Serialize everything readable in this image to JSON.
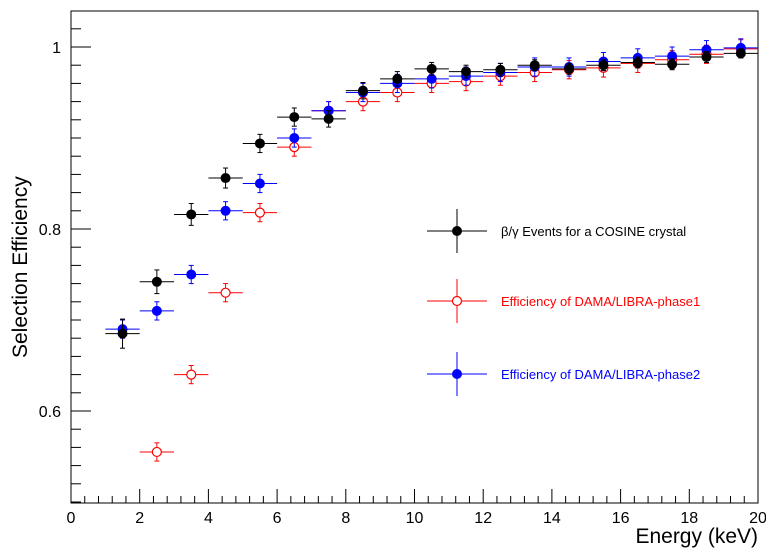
{
  "chart_data": {
    "type": "scatter",
    "title": "",
    "xlabel": "Energy (keV)",
    "ylabel": "Selection Efficiency",
    "xlim": [
      0,
      20
    ],
    "ylim": [
      0.5,
      1.04
    ],
    "x_ticks": [
      "0",
      "2",
      "4",
      "6",
      "8",
      "10",
      "12",
      "14",
      "16",
      "18",
      "20"
    ],
    "y_ticks": [
      "0.6",
      "0.8",
      "1"
    ],
    "grid": false,
    "legend_position": "right",
    "series": [
      {
        "name": "β/γ Events for a COSINE crystal",
        "color": "#000000",
        "marker": "filled-circle",
        "x": [
          1.5,
          2.5,
          3.5,
          4.5,
          5.5,
          6.5,
          7.5,
          8.5,
          9.5,
          10.5,
          11.5,
          12.5,
          13.5,
          14.5,
          15.5,
          16.5,
          17.5,
          18.5,
          19.5
        ],
        "y": [
          0.685,
          0.742,
          0.816,
          0.856,
          0.894,
          0.923,
          0.921,
          0.952,
          0.965,
          0.976,
          0.973,
          0.975,
          0.98,
          0.976,
          0.98,
          0.983,
          0.981,
          0.989,
          0.993
        ],
        "xerr": 0.5,
        "yerr": [
          0.016,
          0.013,
          0.012,
          0.011,
          0.01,
          0.01,
          0.009,
          0.009,
          0.008,
          0.007,
          0.007,
          0.007,
          0.006,
          0.006,
          0.006,
          0.006,
          0.006,
          0.006,
          0.005
        ]
      },
      {
        "name": "Efficiency of DAMA/LIBRA-phase1",
        "color": "#ff0000",
        "marker": "open-circle",
        "x": [
          2.5,
          3.5,
          4.5,
          5.5,
          6.5,
          7.5,
          8.5,
          9.5,
          10.5,
          11.5,
          12.5,
          13.5,
          14.5,
          15.5,
          16.5,
          17.5,
          18.5,
          19.5
        ],
        "y": [
          0.555,
          0.64,
          0.73,
          0.818,
          0.89,
          0.93,
          0.94,
          0.95,
          0.96,
          0.962,
          0.968,
          0.972,
          0.975,
          0.977,
          0.982,
          0.986,
          0.992,
          0.998
        ],
        "xerr": 0.5,
        "yerr": [
          0.01,
          0.01,
          0.01,
          0.01,
          0.01,
          0.01,
          0.01,
          0.01,
          0.01,
          0.01,
          0.01,
          0.01,
          0.01,
          0.01,
          0.01,
          0.01,
          0.01,
          0.01
        ]
      },
      {
        "name": "Efficiency of DAMA/LIBRA-phase2",
        "color": "#0000ff",
        "marker": "filled-circle",
        "x": [
          1.5,
          2.5,
          3.5,
          4.5,
          5.5,
          6.5,
          7.5,
          8.5,
          9.5,
          10.5,
          11.5,
          12.5,
          13.5,
          14.5,
          15.5,
          16.5,
          17.5,
          18.5,
          19.5
        ],
        "y": [
          0.69,
          0.71,
          0.75,
          0.82,
          0.85,
          0.9,
          0.93,
          0.95,
          0.96,
          0.965,
          0.968,
          0.972,
          0.978,
          0.978,
          0.984,
          0.988,
          0.99,
          0.997,
          0.999
        ],
        "xerr": 0.5,
        "yerr": [
          0.01,
          0.01,
          0.01,
          0.01,
          0.01,
          0.01,
          0.01,
          0.01,
          0.01,
          0.01,
          0.01,
          0.01,
          0.01,
          0.01,
          0.01,
          0.01,
          0.01,
          0.01,
          0.01
        ]
      }
    ]
  }
}
